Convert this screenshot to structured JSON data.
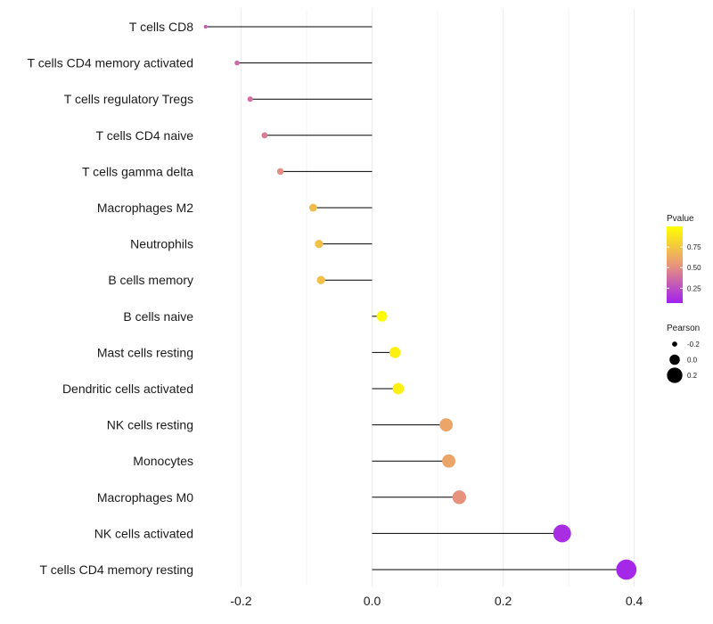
{
  "chart_data": {
    "type": "lollipop",
    "orientation": "horizontal",
    "title": "",
    "xlabel": "",
    "ylabel": "",
    "xlim": [
      -0.255,
      0.425
    ],
    "xticks": [
      -0.2,
      0.0,
      0.2,
      0.4
    ],
    "xtick_labels": [
      "-0.2",
      "0.0",
      "0.2",
      "0.4"
    ],
    "grid": true,
    "baseline": 0,
    "categories": [
      "T cells CD8",
      "T cells CD4 memory activated",
      "T cells regulatory  Tregs",
      "T cells CD4 naive",
      "T cells gamma delta",
      "Macrophages M2",
      "Neutrophils",
      "B cells memory",
      "B cells naive",
      "Mast cells resting",
      "Dendritic cells activated",
      "NK cells resting",
      "Monocytes",
      "Macrophages M0",
      "NK cells activated",
      "T cells CD4 memory resting"
    ],
    "values": [
      -0.254,
      -0.206,
      -0.186,
      -0.164,
      -0.14,
      -0.09,
      -0.081,
      -0.078,
      0.015,
      0.035,
      0.04,
      0.113,
      0.117,
      0.133,
      0.29,
      0.388
    ],
    "pvalues": [
      0.32,
      0.36,
      0.38,
      0.43,
      0.5,
      0.7,
      0.72,
      0.72,
      0.98,
      0.93,
      0.93,
      0.6,
      0.6,
      0.52,
      0.12,
      0.1
    ],
    "legend": {
      "color": {
        "title": "Pvalue",
        "ticks": [
          0.25,
          0.5,
          0.75
        ],
        "tick_labels": [
          "0.25",
          "0.50",
          "0.75"
        ],
        "range": [
          0.07,
          1.0
        ],
        "low_color": "#a020f0",
        "mid_color": "#e9967a",
        "high_color": "#ffff00"
      },
      "size": {
        "title": "Pearson",
        "values": [
          -0.2,
          0.0,
          0.2
        ],
        "labels": [
          "-0.2",
          "0.0",
          "0.2"
        ]
      },
      "placement": "right"
    }
  },
  "colors": {
    "stem": "#000000",
    "grid": "#ebebeb",
    "background": "#ffffff"
  }
}
